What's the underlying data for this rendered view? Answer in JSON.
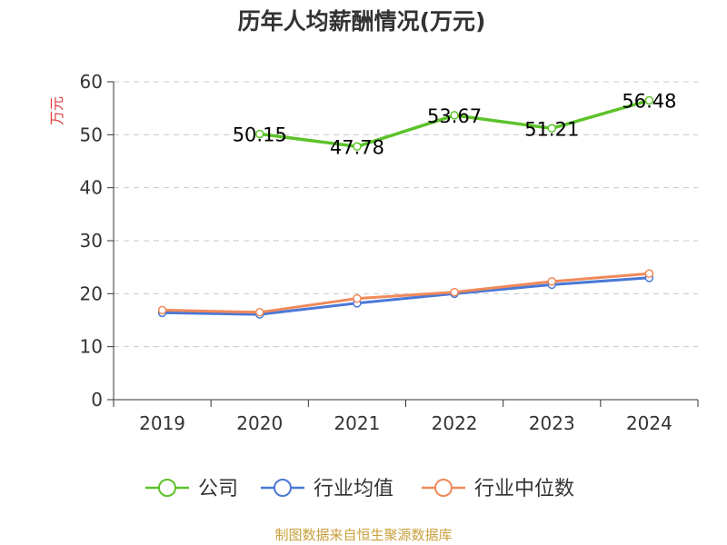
{
  "chart_data": {
    "type": "line",
    "title": "历年人均薪酬情况(万元)",
    "ylabel": "万元",
    "xlabel": "",
    "categories": [
      "2019",
      "2020",
      "2021",
      "2022",
      "2023",
      "2024"
    ],
    "ylim": [
      0,
      60
    ],
    "yticks": [
      0,
      10,
      20,
      30,
      40,
      50,
      60
    ],
    "grid": true,
    "legend_position": "bottom",
    "series": [
      {
        "name": "公司",
        "color": "#5cc22a",
        "values": [
          null,
          50.15,
          47.78,
          53.67,
          51.21,
          56.48
        ],
        "labels": [
          "",
          "50.15",
          "47.78",
          "53.67",
          "51.21",
          "56.48"
        ]
      },
      {
        "name": "行业均值",
        "color": "#4a78d6",
        "values": [
          16.4,
          16.1,
          18.2,
          20.0,
          21.7,
          23.0
        ]
      },
      {
        "name": "行业中位数",
        "color": "#f0895a",
        "values": [
          16.9,
          16.5,
          19.1,
          20.3,
          22.3,
          23.8
        ]
      }
    ],
    "source": "制图数据来自恒生聚源数据库"
  }
}
